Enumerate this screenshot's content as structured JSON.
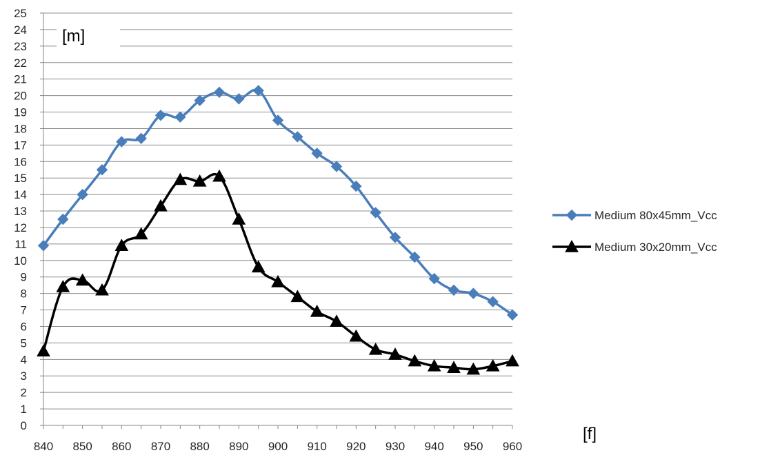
{
  "chart_data": {
    "type": "line",
    "title": "",
    "xlabel": "[f]",
    "ylabel": "[m]",
    "xlim": [
      840,
      960
    ],
    "ylim": [
      0,
      25
    ],
    "grid": true,
    "legend_position": "right",
    "x": [
      840,
      845,
      850,
      855,
      860,
      865,
      870,
      875,
      880,
      885,
      890,
      895,
      900,
      905,
      910,
      915,
      920,
      925,
      930,
      935,
      940,
      945,
      950,
      955,
      960
    ],
    "x_ticks": [
      "840",
      "850",
      "860",
      "870",
      "880",
      "890",
      "900",
      "910",
      "920",
      "930",
      "940",
      "950",
      "960"
    ],
    "y_ticks": [
      "0",
      "1",
      "2",
      "3",
      "4",
      "5",
      "6",
      "7",
      "8",
      "9",
      "10",
      "11",
      "12",
      "13",
      "14",
      "15",
      "16",
      "17",
      "18",
      "19",
      "20",
      "21",
      "22",
      "23",
      "24",
      "25"
    ],
    "series": [
      {
        "name": "Medium 80x45mm_Vcc",
        "color": "#4a7ebb",
        "marker": "diamond",
        "values": [
          10.9,
          12.5,
          14.0,
          15.5,
          17.2,
          17.4,
          18.8,
          18.7,
          19.7,
          20.2,
          19.8,
          20.3,
          18.5,
          17.5,
          16.5,
          15.7,
          14.5,
          12.9,
          11.4,
          10.2,
          8.9,
          8.2,
          8.0,
          7.5,
          6.7
        ]
      },
      {
        "name": "Medium 30x20mm_Vcc",
        "color": "#000000",
        "marker": "triangle",
        "values": [
          4.5,
          8.4,
          8.8,
          8.2,
          10.9,
          11.6,
          13.3,
          14.9,
          14.8,
          15.1,
          12.5,
          9.6,
          8.7,
          7.8,
          6.9,
          6.3,
          5.4,
          4.6,
          4.3,
          3.9,
          3.6,
          3.5,
          3.4,
          3.6,
          3.9
        ]
      }
    ]
  }
}
